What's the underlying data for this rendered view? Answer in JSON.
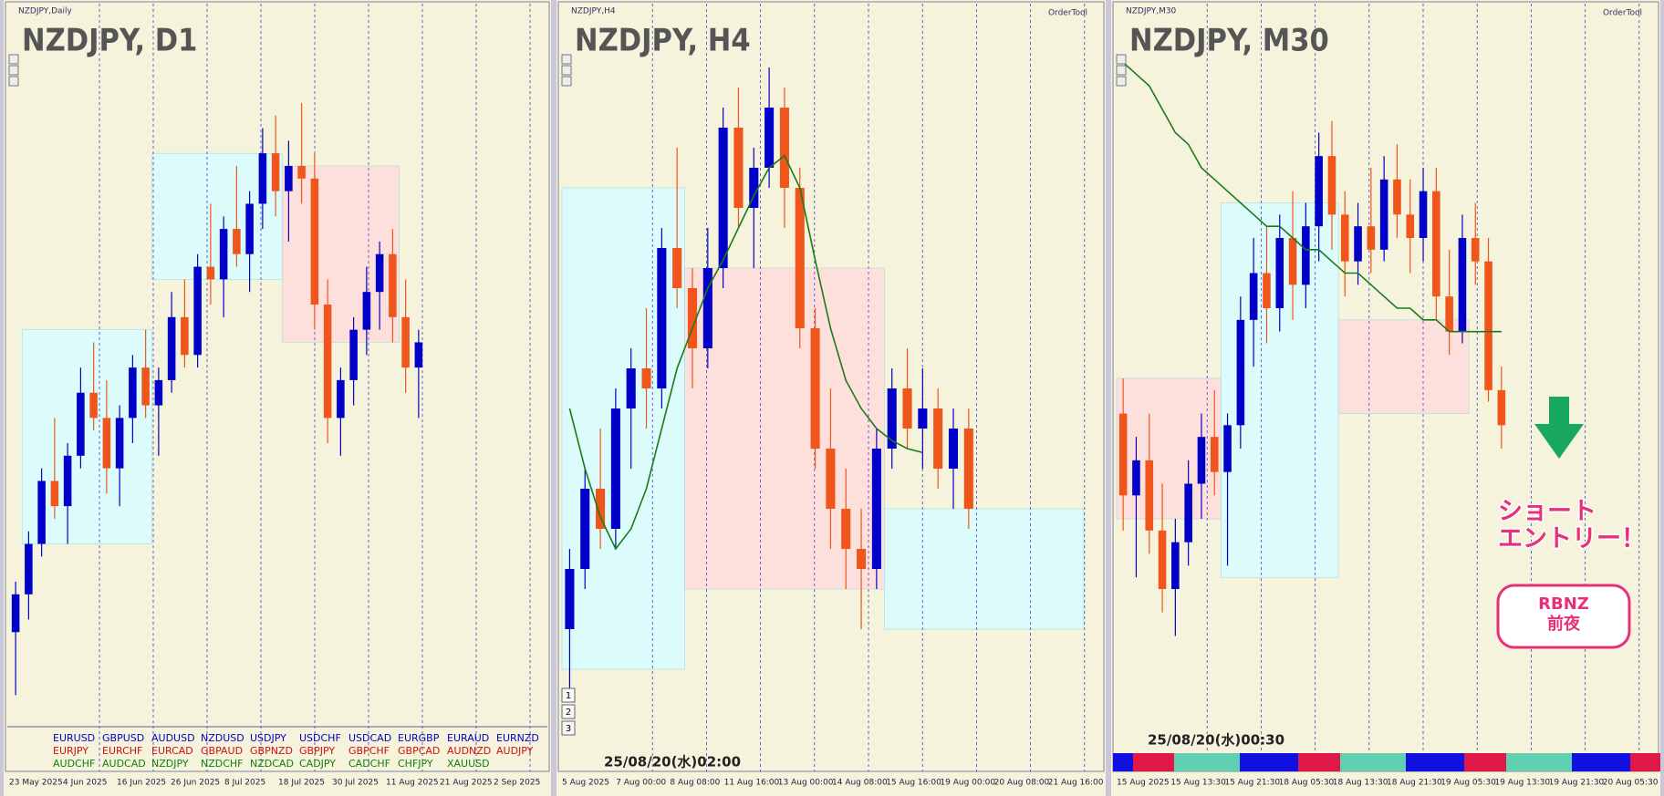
{
  "panels": [
    {
      "header": "NZDJPY,Daily",
      "title": "NZDJPY, D1",
      "up_color": "#0000c8",
      "down_color": "#f0561c",
      "ylim": [
        84.5,
        90
      ],
      "candles": [
        [
          85.2,
          85.6,
          84.7,
          85.5
        ],
        [
          85.5,
          86.0,
          85.3,
          85.9
        ],
        [
          85.9,
          86.5,
          85.8,
          86.4
        ],
        [
          86.4,
          86.9,
          86.1,
          86.2
        ],
        [
          86.2,
          86.7,
          85.9,
          86.6
        ],
        [
          86.6,
          87.3,
          86.5,
          87.1
        ],
        [
          87.1,
          87.5,
          86.8,
          86.9
        ],
        [
          86.9,
          87.2,
          86.3,
          86.5
        ],
        [
          86.5,
          87.0,
          86.2,
          86.9
        ],
        [
          86.9,
          87.4,
          86.7,
          87.3
        ],
        [
          87.3,
          87.6,
          86.9,
          87.0
        ],
        [
          87.0,
          87.3,
          86.6,
          87.2
        ],
        [
          87.2,
          87.9,
          87.1,
          87.7
        ],
        [
          87.7,
          88.0,
          87.3,
          87.4
        ],
        [
          87.4,
          88.2,
          87.3,
          88.1
        ],
        [
          88.1,
          88.6,
          87.8,
          88.0
        ],
        [
          88.0,
          88.5,
          87.7,
          88.4
        ],
        [
          88.4,
          88.9,
          88.1,
          88.2
        ],
        [
          88.2,
          88.7,
          87.9,
          88.6
        ],
        [
          88.6,
          89.2,
          88.4,
          89.0
        ],
        [
          89.0,
          89.3,
          88.5,
          88.7
        ],
        [
          88.7,
          89.1,
          88.3,
          88.9
        ],
        [
          88.9,
          89.4,
          88.6,
          88.8
        ],
        [
          88.8,
          89.0,
          87.6,
          87.8
        ],
        [
          87.8,
          88.0,
          86.7,
          86.9
        ],
        [
          86.9,
          87.3,
          86.6,
          87.2
        ],
        [
          87.2,
          87.7,
          87.0,
          87.6
        ],
        [
          87.6,
          88.1,
          87.4,
          87.9
        ],
        [
          87.9,
          88.3,
          87.6,
          88.2
        ],
        [
          88.2,
          88.4,
          87.5,
          87.7
        ],
        [
          87.7,
          88.0,
          87.1,
          87.3
        ],
        [
          87.3,
          87.6,
          86.9,
          87.5
        ]
      ],
      "zones": [
        {
          "from": 1,
          "to": 10,
          "low": 85.9,
          "high": 87.6,
          "color": "#dcfcfc"
        },
        {
          "from": 11,
          "to": 20,
          "low": 88.0,
          "high": 89.0,
          "color": "#dcfcfc"
        },
        {
          "from": 21,
          "to": 29,
          "low": 87.5,
          "high": 88.9,
          "color": "#fde0dc"
        }
      ],
      "x_labels": [
        "23 May 2025",
        "4 Jun 2025",
        "16 Jun 2025",
        "26 Jun 2025",
        "8 Jul 2025",
        "18 Jul 2025",
        "30 Jul 2025",
        "11 Aug 2025",
        "21 Aug 2025",
        "2 Sep 2025"
      ],
      "symbols": [
        [
          "EURUSD",
          "GBPUSD",
          "AUDUSD",
          "NZDUSD",
          "USDJPY",
          "USDCHF",
          "USDCAD",
          "EURGBP",
          "EURAUD",
          "EURNZD"
        ],
        [
          "EURJPY",
          "EURCHF",
          "EURCAD",
          "GBPAUD",
          "GBPNZD",
          "GBPJPY",
          "GBPCHF",
          "GBPCAD",
          "AUDNZD",
          "AUDJPY"
        ],
        [
          "AUDCHF",
          "AUDCAD",
          "NZDJPY",
          "NZDCHF",
          "NZDCAD",
          "CADJPY",
          "CADCHF",
          "CHFJPY",
          "XAUUSD"
        ]
      ],
      "symbol_colors": [
        "#0000c8",
        "#d01010",
        "#108010"
      ]
    },
    {
      "header": "NZDJPY,H4",
      "title": "NZDJPY, H4",
      "order_tool": "OrderTool",
      "up_color": "#0000c8",
      "down_color": "#f0561c",
      "ylim": [
        86.45,
        88.2
      ],
      "candles": [
        [
          86.7,
          86.9,
          86.55,
          86.85
        ],
        [
          86.85,
          87.1,
          86.8,
          87.05
        ],
        [
          87.05,
          87.2,
          86.9,
          86.95
        ],
        [
          86.95,
          87.3,
          86.9,
          87.25
        ],
        [
          87.25,
          87.4,
          87.1,
          87.35
        ],
        [
          87.35,
          87.5,
          87.2,
          87.3
        ],
        [
          87.3,
          87.7,
          87.25,
          87.65
        ],
        [
          87.65,
          87.9,
          87.5,
          87.55
        ],
        [
          87.55,
          87.6,
          87.3,
          87.4
        ],
        [
          87.4,
          87.7,
          87.35,
          87.6
        ],
        [
          87.6,
          88.0,
          87.55,
          87.95
        ],
        [
          87.95,
          88.05,
          87.7,
          87.75
        ],
        [
          87.75,
          87.9,
          87.6,
          87.85
        ],
        [
          87.85,
          88.1,
          87.8,
          88.0
        ],
        [
          88.0,
          88.05,
          87.7,
          87.8
        ],
        [
          87.8,
          87.85,
          87.4,
          87.45
        ],
        [
          87.45,
          87.5,
          87.1,
          87.15
        ],
        [
          87.15,
          87.3,
          86.9,
          87.0
        ],
        [
          87.0,
          87.1,
          86.8,
          86.9
        ],
        [
          86.9,
          87.0,
          86.7,
          86.85
        ],
        [
          86.85,
          87.2,
          86.8,
          87.15
        ],
        [
          87.15,
          87.35,
          87.1,
          87.3
        ],
        [
          87.3,
          87.4,
          87.15,
          87.2
        ],
        [
          87.2,
          87.35,
          87.1,
          87.25
        ],
        [
          87.25,
          87.3,
          87.05,
          87.1
        ],
        [
          87.1,
          87.25,
          87.0,
          87.2
        ],
        [
          87.2,
          87.25,
          86.95,
          87.0
        ]
      ],
      "ma": [
        87.25,
        87.1,
        86.98,
        86.9,
        86.95,
        87.05,
        87.2,
        87.35,
        87.45,
        87.55,
        87.62,
        87.7,
        87.78,
        87.85,
        87.88,
        87.8,
        87.62,
        87.45,
        87.32,
        87.25,
        87.2,
        87.17,
        87.15,
        87.14,
        null,
        null,
        null
      ],
      "ma_color": "#1a7a1a",
      "zones": [
        {
          "from": 0,
          "to": 7,
          "low": 86.6,
          "high": 87.8,
          "color": "#dcfcfc"
        },
        {
          "from": 8,
          "to": 20,
          "low": 86.8,
          "high": 87.6,
          "color": "#fde0dc"
        },
        {
          "from": 21,
          "to": 33,
          "low": 86.7,
          "high": 87.0,
          "color": "#dcfcfc"
        }
      ],
      "x_labels": [
        "5 Aug 2025",
        "7 Aug 00:00",
        "8 Aug 08:00",
        "11 Aug 16:00",
        "13 Aug 00:00",
        "14 Aug 08:00",
        "15 Aug 16:00",
        "19 Aug 00:00",
        "20 Aug 08:00",
        "21 Aug 16:00"
      ],
      "buttons": [
        "1",
        "2",
        "3"
      ],
      "timestamp": "25/08/20(水)02:00"
    },
    {
      "header": "NZDJPY,M30",
      "title": "NZDJPY, M30",
      "order_tool": "OrderTool",
      "up_color": "#0000c8",
      "down_color": "#f0561c",
      "ylim": [
        86.85,
        87.45
      ],
      "candles": [
        [
          87.12,
          87.15,
          87.02,
          87.05
        ],
        [
          87.05,
          87.1,
          86.98,
          87.08
        ],
        [
          87.08,
          87.12,
          87.0,
          87.02
        ],
        [
          87.02,
          87.06,
          86.95,
          86.97
        ],
        [
          86.97,
          87.03,
          86.93,
          87.01
        ],
        [
          87.01,
          87.08,
          86.99,
          87.06
        ],
        [
          87.06,
          87.12,
          87.03,
          87.1
        ],
        [
          87.1,
          87.14,
          87.05,
          87.07
        ],
        [
          87.07,
          87.12,
          86.99,
          87.11
        ],
        [
          87.11,
          87.22,
          87.09,
          87.2
        ],
        [
          87.2,
          87.27,
          87.16,
          87.24
        ],
        [
          87.24,
          87.28,
          87.18,
          87.21
        ],
        [
          87.21,
          87.29,
          87.19,
          87.27
        ],
        [
          87.27,
          87.31,
          87.2,
          87.23
        ],
        [
          87.23,
          87.3,
          87.21,
          87.28
        ],
        [
          87.28,
          87.36,
          87.25,
          87.34
        ],
        [
          87.34,
          87.37,
          87.26,
          87.29
        ],
        [
          87.29,
          87.31,
          87.22,
          87.25
        ],
        [
          87.25,
          87.3,
          87.23,
          87.28
        ],
        [
          87.28,
          87.33,
          87.24,
          87.26
        ],
        [
          87.26,
          87.34,
          87.25,
          87.32
        ],
        [
          87.32,
          87.35,
          87.27,
          87.29
        ],
        [
          87.29,
          87.32,
          87.24,
          87.27
        ],
        [
          87.27,
          87.33,
          87.25,
          87.31
        ],
        [
          87.31,
          87.33,
          87.2,
          87.22
        ],
        [
          87.22,
          87.26,
          87.17,
          87.19
        ],
        [
          87.19,
          87.29,
          87.18,
          87.27
        ],
        [
          87.27,
          87.3,
          87.23,
          87.25
        ],
        [
          87.25,
          87.27,
          87.13,
          87.14
        ],
        [
          87.14,
          87.16,
          87.09,
          87.11
        ]
      ],
      "ma": [
        87.42,
        87.41,
        87.4,
        87.38,
        87.36,
        87.35,
        87.33,
        87.32,
        87.31,
        87.3,
        87.29,
        87.28,
        87.28,
        87.27,
        87.26,
        87.26,
        87.25,
        87.24,
        87.24,
        87.23,
        87.22,
        87.21,
        87.21,
        87.2,
        87.2,
        87.19,
        87.19,
        87.19,
        87.19,
        87.19
      ],
      "ma_color": "#1a7a1a",
      "zones": [
        {
          "from": 0,
          "to": 7,
          "low": 87.03,
          "high": 87.15,
          "color": "#fde0dc"
        },
        {
          "from": 8,
          "to": 16,
          "low": 86.98,
          "high": 87.3,
          "color": "#dcfcfc"
        },
        {
          "from": 17,
          "to": 26,
          "low": 87.12,
          "high": 87.2,
          "color": "#fde0dc"
        }
      ],
      "x_labels": [
        "15 Aug 2025",
        "15 Aug 13:30",
        "15 Aug 21:30",
        "18 Aug 05:30",
        "18 Aug 13:30",
        "18 Aug 21:30",
        "19 Aug 05:30",
        "19 Aug 13:30",
        "19 Aug 21:30",
        "20 Aug 05:30"
      ],
      "timestamp": "25/08/20(水)00:30",
      "annotation": [
        "ショート",
        "エントリー！"
      ],
      "badge": [
        "RBNZ",
        "前夜"
      ]
    }
  ]
}
